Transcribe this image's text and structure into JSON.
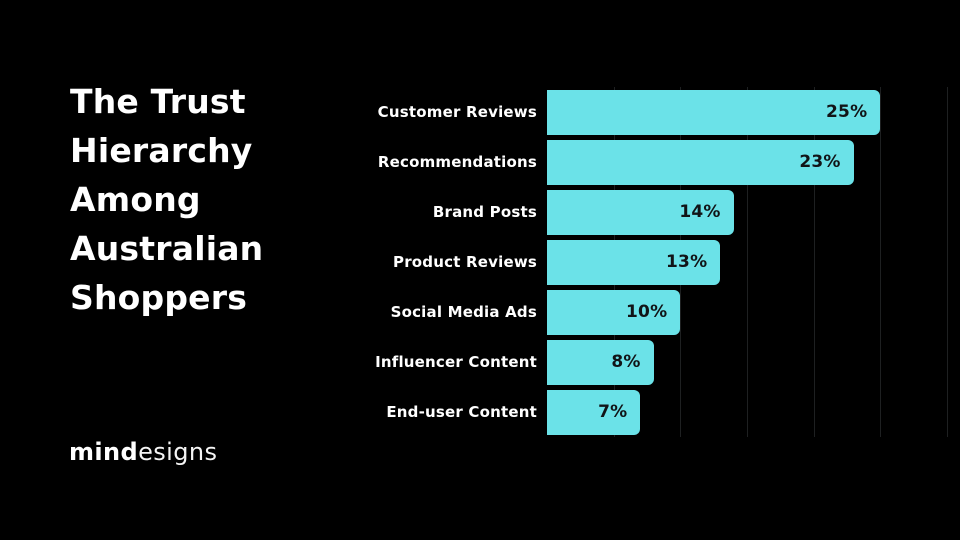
{
  "slide": {
    "title": "The Trust Hierarchy Among Australian Shoppers",
    "title_lines": "The Trust\nHierarchy\nAmong\nAustralian\nShoppers",
    "logo": {
      "bold": "mind",
      "light": "esigns"
    }
  },
  "colors": {
    "background": "#000000",
    "bar": "#6BE2E8",
    "bar_value_label": "#111417",
    "category_label": "#FFFFFF",
    "gridline": "#1E2021",
    "title": "#FFFFFF"
  },
  "chart_data": {
    "type": "bar",
    "orientation": "horizontal",
    "title": "The Trust Hierarchy Among Australian Shoppers",
    "categories": [
      "Customer Reviews",
      "Recommendations",
      "Brand Posts",
      "Product Reviews",
      "Social Media Ads",
      "Influencer Content",
      "End-user Content"
    ],
    "values": [
      25,
      23,
      14,
      13,
      10,
      8,
      7
    ],
    "value_suffix": "%",
    "xlabel": "",
    "ylabel": "",
    "xlim": [
      0,
      30
    ],
    "gridline_step": 5,
    "grid": "vertical",
    "legend": "none"
  }
}
